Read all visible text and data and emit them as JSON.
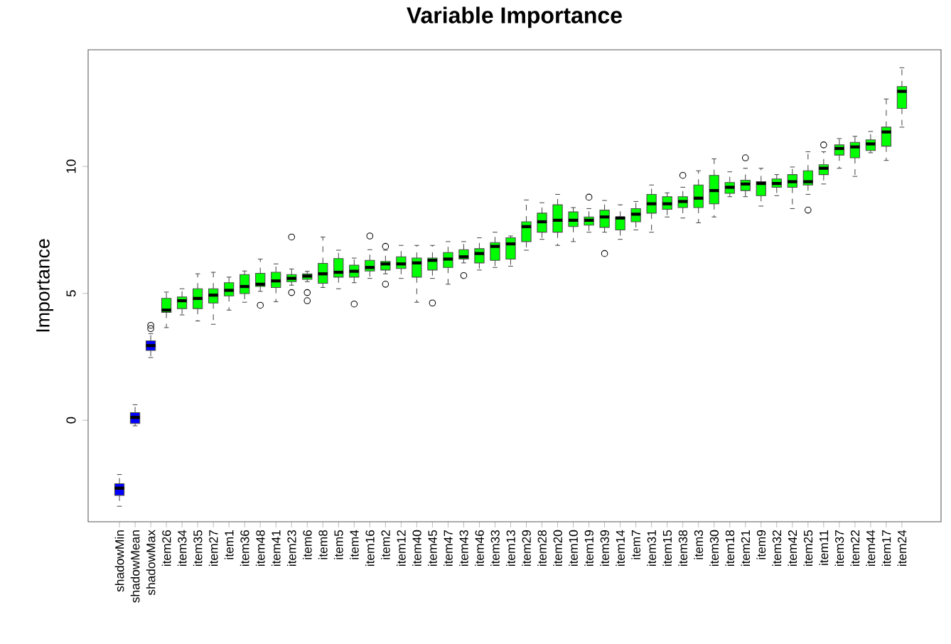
{
  "chart_data": {
    "type": "box",
    "title": "Variable Importance",
    "ylabel": "Importance",
    "categories": [
      "shadowMin",
      "shadowMean",
      "shadowMax",
      "item26",
      "item34",
      "item35",
      "item27",
      "item1",
      "item36",
      "item48",
      "item41",
      "item23",
      "item6",
      "item8",
      "item5",
      "item4",
      "item16",
      "item2",
      "item12",
      "item40",
      "item45",
      "item47",
      "item43",
      "item46",
      "item33",
      "item13",
      "item29",
      "item28",
      "item20",
      "item10",
      "item19",
      "item39",
      "item14",
      "item7",
      "item31",
      "item15",
      "item38",
      "item3",
      "item30",
      "item18",
      "item21",
      "item9",
      "item32",
      "item42",
      "item25",
      "item11",
      "item37",
      "item22",
      "item44",
      "item17",
      "item24"
    ],
    "colors": [
      "#0000ff",
      "#0000ff",
      "#0000ff",
      "#00ff00",
      "#00ff00",
      "#00ff00",
      "#00ff00",
      "#00ff00",
      "#00ff00",
      "#00ff00",
      "#00ff00",
      "#00ff00",
      "#00ff00",
      "#00ff00",
      "#00ff00",
      "#00ff00",
      "#00ff00",
      "#00ff00",
      "#00ff00",
      "#00ff00",
      "#00ff00",
      "#00ff00",
      "#00ff00",
      "#00ff00",
      "#00ff00",
      "#00ff00",
      "#00ff00",
      "#00ff00",
      "#00ff00",
      "#00ff00",
      "#00ff00",
      "#00ff00",
      "#00ff00",
      "#00ff00",
      "#00ff00",
      "#00ff00",
      "#00ff00",
      "#00ff00",
      "#00ff00",
      "#00ff00",
      "#00ff00",
      "#00ff00",
      "#00ff00",
      "#00ff00",
      "#00ff00",
      "#00ff00",
      "#00ff00",
      "#00ff00",
      "#00ff00",
      "#00ff00",
      "#00ff00"
    ],
    "boxes": [
      {
        "low": -3.39,
        "q1": -2.96,
        "median": -2.68,
        "q3": -2.5,
        "high": -2.14
      },
      {
        "low": -0.22,
        "q1": -0.13,
        "median": 0.11,
        "q3": 0.3,
        "high": 0.61
      },
      {
        "low": 2.47,
        "q1": 2.75,
        "median": 2.94,
        "q3": 3.13,
        "high": 3.41,
        "outliers": [
          3.74,
          3.61
        ]
      },
      {
        "low": 3.65,
        "q1": 4.25,
        "median": 4.34,
        "q3": 4.8,
        "high": 5.05
      },
      {
        "low": 4.15,
        "q1": 4.4,
        "median": 4.71,
        "q3": 4.86,
        "high": 5.18
      },
      {
        "low": 3.91,
        "q1": 4.4,
        "median": 4.8,
        "q3": 5.18,
        "high": 5.77
      },
      {
        "low": 3.78,
        "q1": 4.62,
        "median": 4.93,
        "q3": 5.18,
        "high": 5.83
      },
      {
        "low": 4.34,
        "q1": 4.9,
        "median": 5.12,
        "q3": 5.42,
        "high": 5.64
      },
      {
        "low": 4.65,
        "q1": 4.99,
        "median": 5.27,
        "q3": 5.74,
        "high": 5.88
      },
      {
        "low": 5.08,
        "q1": 5.27,
        "median": 5.36,
        "q3": 5.79,
        "high": 6.35,
        "outliers": [
          4.53
        ]
      },
      {
        "low": 4.67,
        "q1": 5.23,
        "median": 5.49,
        "q3": 5.83,
        "high": 6.16
      },
      {
        "low": 5.32,
        "q1": 5.46,
        "median": 5.59,
        "q3": 5.74,
        "high": 5.96,
        "outliers": [
          7.22,
          5.03
        ]
      },
      {
        "low": 5.46,
        "q1": 5.55,
        "median": 5.68,
        "q3": 5.77,
        "high": 5.87,
        "outliers": [
          5.03,
          4.71
        ]
      },
      {
        "low": 5.23,
        "q1": 5.4,
        "median": 5.77,
        "q3": 6.18,
        "high": 7.22
      },
      {
        "low": 5.18,
        "q1": 5.64,
        "median": 5.83,
        "q3": 6.37,
        "high": 6.7
      },
      {
        "low": 5.42,
        "q1": 5.64,
        "median": 5.87,
        "q3": 6.11,
        "high": 6.39,
        "outliers": [
          4.58
        ]
      },
      {
        "low": 5.59,
        "q1": 5.88,
        "median": 6.02,
        "q3": 6.3,
        "high": 6.72,
        "outliers": [
          7.26
        ]
      },
      {
        "low": 5.77,
        "q1": 5.92,
        "median": 6.16,
        "q3": 6.26,
        "high": 6.7,
        "outliers": [
          6.85,
          5.36
        ]
      },
      {
        "low": 5.59,
        "q1": 5.98,
        "median": 6.16,
        "q3": 6.44,
        "high": 6.89
      },
      {
        "low": 4.65,
        "q1": 5.64,
        "median": 6.2,
        "q3": 6.39,
        "high": 6.89
      },
      {
        "low": 5.59,
        "q1": 5.92,
        "median": 6.3,
        "q3": 6.39,
        "high": 6.89,
        "outliers": [
          4.62
        ]
      },
      {
        "low": 5.36,
        "q1": 6.02,
        "median": 6.35,
        "q3": 6.61,
        "high": 7.04
      },
      {
        "low": 6.2,
        "q1": 6.35,
        "median": 6.44,
        "q3": 6.72,
        "high": 7.04,
        "outliers": [
          5.7
        ]
      },
      {
        "low": 5.92,
        "q1": 6.2,
        "median": 6.57,
        "q3": 6.76,
        "high": 7.19
      },
      {
        "low": 6.02,
        "q1": 6.3,
        "median": 6.85,
        "q3": 7.0,
        "high": 7.41
      },
      {
        "low": 6.07,
        "q1": 6.35,
        "median": 6.95,
        "q3": 7.19,
        "high": 7.26
      },
      {
        "low": 6.7,
        "q1": 7.04,
        "median": 7.63,
        "q3": 7.82,
        "high": 8.68
      },
      {
        "low": 7.13,
        "q1": 7.41,
        "median": 7.82,
        "q3": 8.16,
        "high": 8.57
      },
      {
        "low": 6.89,
        "q1": 7.41,
        "median": 7.88,
        "q3": 8.49,
        "high": 8.9
      },
      {
        "low": 7.04,
        "q1": 7.63,
        "median": 7.88,
        "q3": 8.21,
        "high": 8.38
      },
      {
        "low": 7.41,
        "q1": 7.69,
        "median": 7.88,
        "q3": 8.01,
        "high": 8.34,
        "outliers": [
          8.79
        ]
      },
      {
        "low": 7.41,
        "q1": 7.6,
        "median": 8.01,
        "q3": 8.28,
        "high": 8.66,
        "outliers": [
          6.57
        ]
      },
      {
        "low": 7.13,
        "q1": 7.5,
        "median": 7.97,
        "q3": 8.01,
        "high": 8.49
      },
      {
        "low": 7.5,
        "q1": 7.82,
        "median": 8.12,
        "q3": 8.34,
        "high": 8.62
      },
      {
        "low": 7.41,
        "q1": 8.16,
        "median": 8.53,
        "q3": 8.9,
        "high": 9.27
      },
      {
        "low": 8.01,
        "q1": 8.31,
        "median": 8.53,
        "q3": 8.81,
        "high": 8.96
      },
      {
        "low": 7.97,
        "q1": 8.38,
        "median": 8.62,
        "q3": 8.81,
        "high": 9.18,
        "outliers": [
          9.65
        ]
      },
      {
        "low": 7.78,
        "q1": 8.38,
        "median": 8.75,
        "q3": 9.27,
        "high": 9.83
      },
      {
        "low": 8.01,
        "q1": 8.53,
        "median": 9.05,
        "q3": 9.65,
        "high": 10.3
      },
      {
        "low": 8.81,
        "q1": 8.94,
        "median": 9.18,
        "q3": 9.37,
        "high": 9.79
      },
      {
        "low": 8.81,
        "q1": 9.05,
        "median": 9.31,
        "q3": 9.46,
        "high": 9.93,
        "outliers": [
          10.34
        ]
      },
      {
        "low": 8.44,
        "q1": 8.85,
        "median": 9.33,
        "q3": 9.4,
        "high": 9.93
      },
      {
        "low": 8.85,
        "q1": 9.18,
        "median": 9.33,
        "q3": 9.51,
        "high": 9.68
      },
      {
        "low": 8.34,
        "q1": 9.18,
        "median": 9.4,
        "q3": 9.68,
        "high": 9.98
      },
      {
        "low": 8.9,
        "q1": 9.27,
        "median": 9.4,
        "q3": 9.83,
        "high": 10.58,
        "outliers": [
          8.28
        ]
      },
      {
        "low": 9.31,
        "q1": 9.68,
        "median": 9.93,
        "q3": 10.07,
        "high": 10.58,
        "outliers": [
          10.85
        ]
      },
      {
        "low": 9.93,
        "q1": 10.45,
        "median": 10.71,
        "q3": 10.85,
        "high": 11.1
      },
      {
        "low": 9.61,
        "q1": 10.34,
        "median": 10.77,
        "q3": 10.95,
        "high": 11.19
      },
      {
        "low": 10.54,
        "q1": 10.63,
        "median": 10.89,
        "q3": 11.05,
        "high": 11.38
      },
      {
        "low": 10.24,
        "q1": 10.8,
        "median": 11.36,
        "q3": 11.55,
        "high": 12.66
      },
      {
        "low": 11.55,
        "q1": 12.29,
        "median": 12.96,
        "q3": 13.15,
        "high": 13.89
      }
    ],
    "ylim": [
      -4.0,
      14.6
    ],
    "yticks": [
      0,
      5,
      10
    ]
  }
}
